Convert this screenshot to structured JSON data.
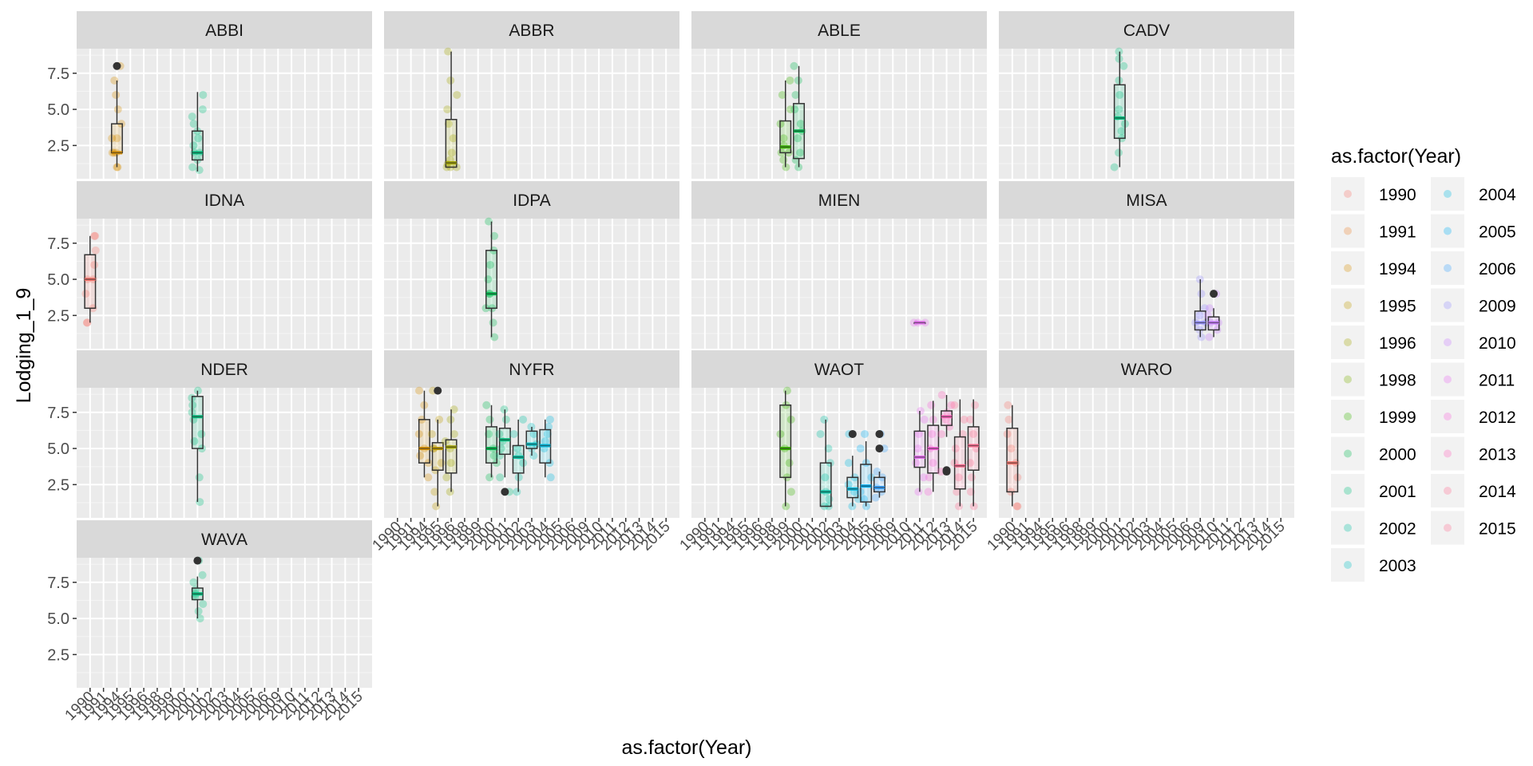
{
  "chart_data": {
    "type": "boxplot",
    "xlabel": "as.factor(Year)",
    "ylabel": "Lodging_1_9",
    "ylim": [
      0.2,
      9.2
    ],
    "y_ticks": [
      2.5,
      5.0,
      7.5
    ],
    "y_tick_labels": [
      "2.5",
      "5.0",
      "7.5"
    ],
    "x_categories": [
      "1990",
      "1991",
      "1994",
      "1995",
      "1996",
      "1998",
      "1999",
      "2000",
      "2001",
      "2002",
      "2003",
      "2004",
      "2005",
      "2006",
      "2009",
      "2010",
      "2011",
      "2012",
      "2013",
      "2014",
      "2015"
    ],
    "legend": {
      "title": "as.factor(Year)",
      "placement": "right",
      "entries": [
        {
          "label": "1990",
          "color": "#F8766D"
        },
        {
          "label": "1991",
          "color": "#EA8331"
        },
        {
          "label": "1994",
          "color": "#D89000"
        },
        {
          "label": "1995",
          "color": "#C09B00"
        },
        {
          "label": "1996",
          "color": "#A3A500"
        },
        {
          "label": "1998",
          "color": "#7CAE00"
        },
        {
          "label": "1999",
          "color": "#39B600"
        },
        {
          "label": "2000",
          "color": "#00BB4E"
        },
        {
          "label": "2001",
          "color": "#00BF7D"
        },
        {
          "label": "2002",
          "color": "#00C1A3"
        },
        {
          "label": "2003",
          "color": "#00BFC4"
        },
        {
          "label": "2004",
          "color": "#00BAE0"
        },
        {
          "label": "2005",
          "color": "#00B0F6"
        },
        {
          "label": "2006",
          "color": "#35A2FF"
        },
        {
          "label": "2009",
          "color": "#9590FF"
        },
        {
          "label": "2010",
          "color": "#C77CFF"
        },
        {
          "label": "2011",
          "color": "#E76BF3"
        },
        {
          "label": "2012",
          "color": "#FA62DB"
        },
        {
          "label": "2013",
          "color": "#FF62BC"
        },
        {
          "label": "2014",
          "color": "#FF6C91"
        },
        {
          "label": "2015",
          "color": "#FF6C91"
        }
      ]
    },
    "panels": [
      {
        "name": "ABBI",
        "boxes": [
          {
            "year": "1994",
            "min": 1,
            "q1": 2,
            "median": 2,
            "q3": 4,
            "max": 7,
            "outliers": [
              8
            ],
            "points": [
              1,
              1,
              2,
              2,
              2,
              3,
              3,
              4,
              5,
              6,
              7,
              8
            ]
          },
          {
            "year": "2001",
            "min": 0.7,
            "q1": 1.5,
            "median": 2,
            "q3": 3.5,
            "max": 6.2,
            "outliers": [],
            "points": [
              0.8,
              1,
              1.5,
              2,
              2,
              2.5,
              3,
              3.5,
              4,
              4.5,
              5,
              6
            ]
          }
        ]
      },
      {
        "name": "ABBR",
        "boxes": [
          {
            "year": "1996",
            "min": 1,
            "q1": 1,
            "median": 1.3,
            "q3": 4.3,
            "max": 9,
            "outliers": [],
            "points": [
              1,
              1,
              1,
              1.2,
              1.5,
              2,
              3,
              4,
              5,
              6,
              7,
              9
            ]
          }
        ]
      },
      {
        "name": "ABLE",
        "boxes": [
          {
            "year": "1999",
            "min": 1,
            "q1": 2,
            "median": 2.4,
            "q3": 4.2,
            "max": 7,
            "outliers": [],
            "points": [
              1,
              1.5,
              2,
              2,
              2.5,
              3,
              4,
              5,
              6,
              7
            ]
          },
          {
            "year": "2000",
            "min": 1,
            "q1": 1.6,
            "median": 3.5,
            "q3": 5.4,
            "max": 8,
            "outliers": [],
            "points": [
              1,
              1.5,
              2,
              3,
              3.5,
              4,
              5,
              6,
              7,
              8
            ]
          }
        ]
      },
      {
        "name": "CADV",
        "boxes": [
          {
            "year": "2001",
            "min": 1,
            "q1": 3,
            "median": 4.4,
            "q3": 6.7,
            "max": 9,
            "outliers": [],
            "points": [
              1,
              2,
              3,
              3.5,
              4,
              4.5,
              5,
              6,
              7,
              8,
              8.5,
              9
            ]
          }
        ]
      },
      {
        "name": "IDNA",
        "boxes": [
          {
            "year": "1990",
            "min": 2,
            "q1": 3,
            "median": 5,
            "q3": 6.7,
            "max": 8,
            "outliers": [],
            "points": [
              2,
              2,
              3,
              4,
              5,
              5,
              6,
              7,
              8,
              8
            ]
          }
        ]
      },
      {
        "name": "IDPA",
        "boxes": [
          {
            "year": "2000",
            "min": 1,
            "q1": 3,
            "median": 4,
            "q3": 7,
            "max": 9,
            "outliers": [],
            "points": [
              1,
              2,
              3,
              3,
              4,
              4,
              5,
              6,
              7,
              8,
              9
            ]
          }
        ]
      },
      {
        "name": "MIEN",
        "boxes": [
          {
            "year": "2011",
            "min": 2,
            "q1": 2,
            "median": 2,
            "q3": 2,
            "max": 2,
            "outliers": [],
            "points": [
              2,
              2,
              2
            ]
          }
        ]
      },
      {
        "name": "MISA",
        "boxes": [
          {
            "year": "2009",
            "min": 1,
            "q1": 1.5,
            "median": 2,
            "q3": 2.8,
            "max": 5,
            "outliers": [],
            "points": [
              1,
              1.5,
              2,
              2,
              2.5,
              3,
              4,
              5
            ]
          },
          {
            "year": "2010",
            "min": 1,
            "q1": 1.5,
            "median": 2,
            "q3": 2.4,
            "max": 3,
            "outliers": [
              4
            ],
            "points": [
              1,
              1.5,
              2,
              2,
              2.5,
              3,
              4
            ]
          }
        ]
      },
      {
        "name": "NDER",
        "boxes": [
          {
            "year": "2001",
            "min": 1.3,
            "q1": 5,
            "median": 7.2,
            "q3": 8.6,
            "max": 9,
            "outliers": [],
            "points": [
              1.3,
              3,
              5,
              5.5,
              6,
              7,
              7.5,
              8,
              8.5,
              9
            ]
          }
        ]
      },
      {
        "name": "NYFR",
        "boxes": [
          {
            "year": "1994",
            "min": 3,
            "q1": 4,
            "median": 5,
            "q3": 7,
            "max": 9,
            "outliers": [],
            "points": [
              3,
              4,
              4.5,
              5,
              6,
              7,
              8,
              9
            ]
          },
          {
            "year": "1995",
            "min": 1,
            "q1": 3.5,
            "median": 5,
            "q3": 5.4,
            "max": 7,
            "outliers": [
              9
            ],
            "points": [
              1,
              2,
              3.5,
              4,
              5,
              5,
              6,
              7,
              9
            ]
          },
          {
            "year": "1996",
            "min": 2,
            "q1": 3.3,
            "median": 5.1,
            "q3": 5.6,
            "max": 7.7,
            "outliers": [],
            "points": [
              2,
              3,
              4,
              5,
              5.5,
              6,
              7,
              7.7
            ]
          },
          {
            "year": "2000",
            "min": 3,
            "q1": 4,
            "median": 5,
            "q3": 6.5,
            "max": 8,
            "outliers": [],
            "points": [
              3,
              4,
              4.5,
              5,
              6,
              7,
              8
            ]
          },
          {
            "year": "2001",
            "min": 3,
            "q1": 4.6,
            "median": 5.6,
            "q3": 6.4,
            "max": 7.7,
            "outliers": [
              2
            ],
            "points": [
              2,
              3,
              4.5,
              5,
              5.5,
              6,
              7,
              7.7
            ]
          },
          {
            "year": "2002",
            "min": 2,
            "q1": 3.3,
            "median": 4.4,
            "q3": 5.2,
            "max": 7,
            "outliers": [],
            "points": [
              2,
              3,
              4,
              4.5,
              5,
              6,
              7
            ]
          },
          {
            "year": "2003",
            "min": 4.5,
            "q1": 5,
            "median": 5.3,
            "q3": 6.2,
            "max": 6.5,
            "outliers": [],
            "points": [
              4.5,
              5,
              5.3,
              6,
              6.5
            ]
          },
          {
            "year": "2004",
            "min": 3,
            "q1": 4,
            "median": 5.2,
            "q3": 6.3,
            "max": 7,
            "outliers": [],
            "points": [
              3,
              4,
              5,
              5.5,
              6,
              6.5,
              7
            ]
          }
        ]
      },
      {
        "name": "WAOT",
        "boxes": [
          {
            "year": "1999",
            "min": 1,
            "q1": 3,
            "median": 5,
            "q3": 8,
            "max": 9,
            "outliers": [],
            "points": [
              1,
              2,
              3,
              4,
              5,
              6,
              7,
              8,
              9
            ]
          },
          {
            "year": "2002",
            "min": 1,
            "q1": 1,
            "median": 2,
            "q3": 4,
            "max": 7,
            "outliers": [],
            "points": [
              1,
              1,
              1.5,
              2,
              3,
              4,
              5,
              6,
              7
            ]
          },
          {
            "year": "2004",
            "min": 1,
            "q1": 1.6,
            "median": 2.2,
            "q3": 3,
            "max": 4.5,
            "outliers": [
              6
            ],
            "points": [
              1,
              1.5,
              2,
              2.5,
              3,
              4,
              6
            ]
          },
          {
            "year": "2005",
            "min": 1,
            "q1": 1.3,
            "median": 2.4,
            "q3": 3.9,
            "max": 5.5,
            "outliers": [],
            "points": [
              1,
              1.5,
              2,
              3,
              4,
              5,
              6
            ]
          },
          {
            "year": "2006",
            "min": 1.6,
            "q1": 2,
            "median": 2.3,
            "q3": 3,
            "max": 3.4,
            "outliers": [
              5,
              6
            ],
            "points": [
              1.6,
              2,
              2.3,
              3,
              3.4,
              5,
              6
            ]
          },
          {
            "year": "2011",
            "min": 2,
            "q1": 3.7,
            "median": 4.4,
            "q3": 6.2,
            "max": 7.6,
            "outliers": [],
            "points": [
              2,
              3,
              4,
              5,
              6,
              7,
              7.6
            ]
          },
          {
            "year": "2012",
            "min": 2,
            "q1": 3.3,
            "median": 5,
            "q3": 6.6,
            "max": 8.3,
            "outliers": [],
            "points": [
              2,
              3,
              4,
              5,
              6,
              7,
              8
            ]
          },
          {
            "year": "2013",
            "min": 5.8,
            "q1": 6.6,
            "median": 7.2,
            "q3": 7.6,
            "max": 8.7,
            "outliers": [
              3.4,
              3.5
            ],
            "points": [
              3.4,
              6,
              6.5,
              7,
              7.5,
              8,
              8.7
            ]
          },
          {
            "year": "2014",
            "min": 1,
            "q1": 2.2,
            "median": 3.8,
            "q3": 5.8,
            "max": 8.4,
            "outliers": [],
            "points": [
              1,
              2,
              3,
              4,
              5,
              6,
              7,
              8
            ]
          },
          {
            "year": "2015",
            "min": 1,
            "q1": 3.5,
            "median": 5.2,
            "q3": 6.5,
            "max": 8.4,
            "outliers": [],
            "points": [
              1,
              2,
              3,
              4,
              5,
              6,
              7,
              8
            ]
          }
        ]
      },
      {
        "name": "WARO",
        "boxes": [
          {
            "year": "1990",
            "min": 1,
            "q1": 2,
            "median": 4,
            "q3": 6.4,
            "max": 8,
            "outliers": [],
            "points": [
              1,
              1,
              2,
              3,
              4,
              5,
              6,
              7,
              8
            ]
          }
        ]
      },
      {
        "name": "WAVA",
        "boxes": [
          {
            "year": "2001",
            "min": 5,
            "q1": 6.3,
            "median": 6.7,
            "q3": 7.1,
            "max": 7.9,
            "outliers": [
              9
            ],
            "points": [
              5,
              5.5,
              6,
              6.5,
              6.7,
              7,
              7.5,
              8,
              9
            ]
          }
        ]
      }
    ]
  }
}
